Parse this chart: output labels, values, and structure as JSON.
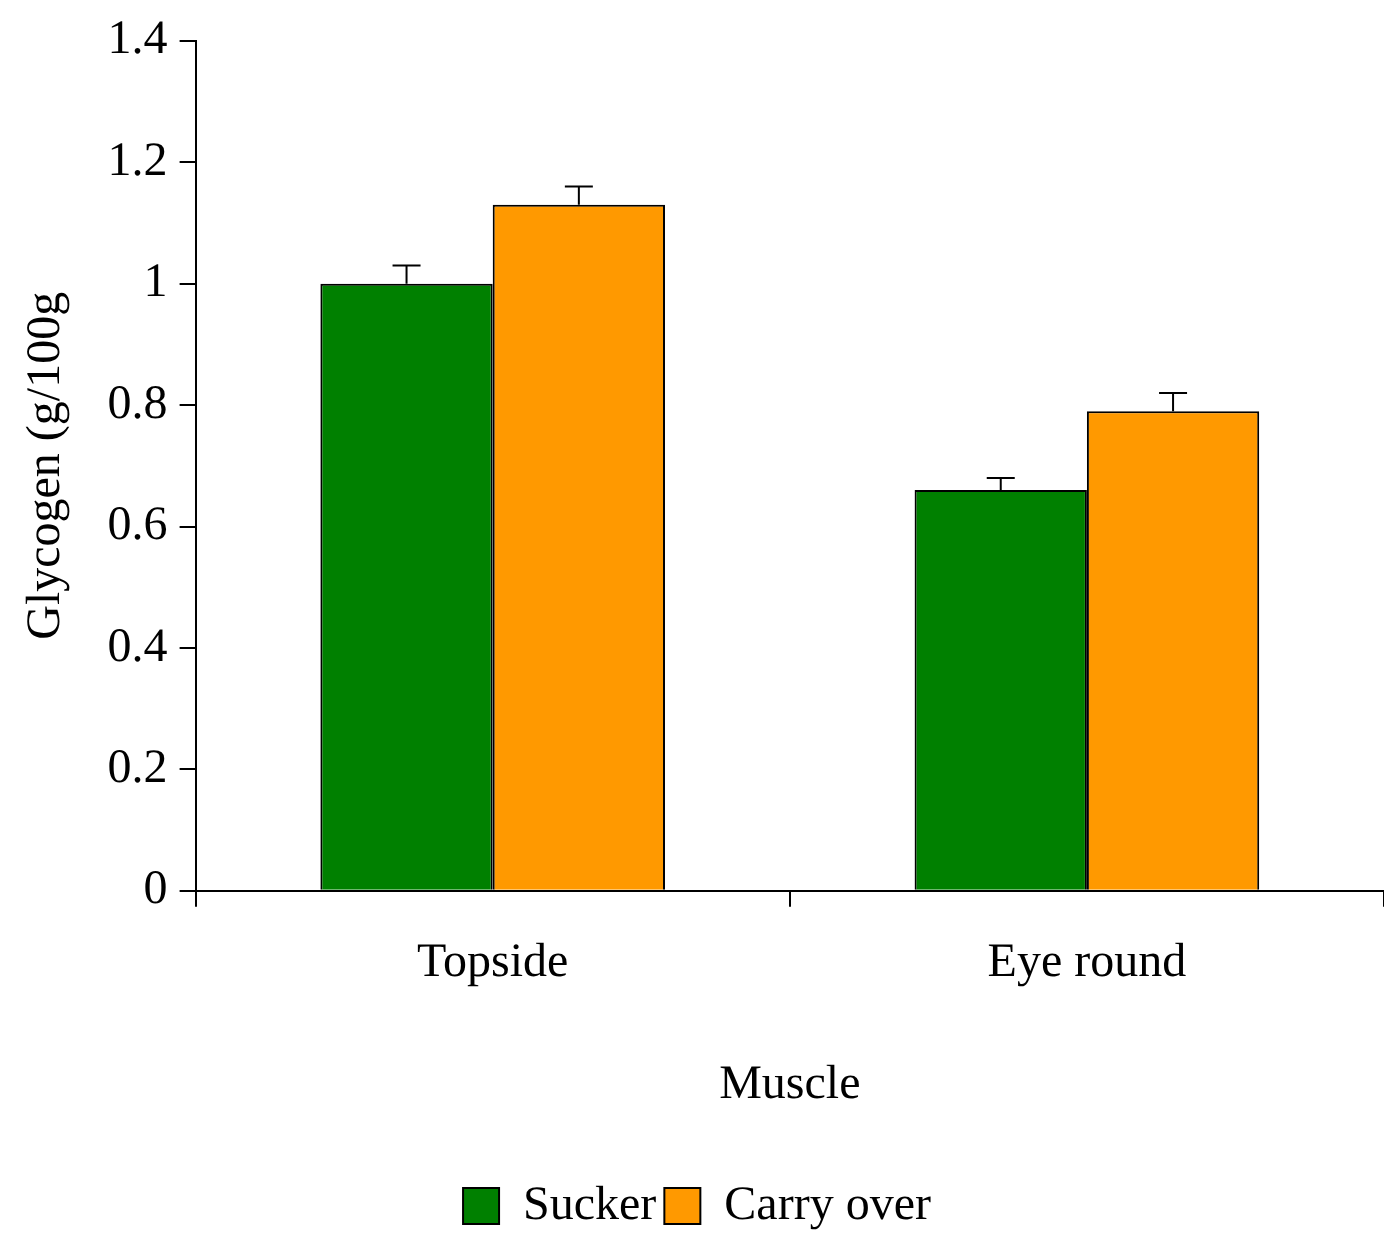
{
  "chart_data": {
    "type": "bar",
    "xlabel": "Muscle",
    "ylabel": "Glycogen (g/100g",
    "categories": [
      "Topside",
      "Eye round"
    ],
    "series": [
      {
        "name": "Sucker",
        "color": "#008000",
        "values": [
          1.0,
          0.66
        ],
        "errors": [
          [
            1.0,
            1.03
          ],
          [
            0.66,
            0.68
          ]
        ]
      },
      {
        "name": "Carry over",
        "color": "#ff9900",
        "values": [
          1.13,
          0.79
        ],
        "errors": [
          [
            1.13,
            1.16
          ],
          [
            0.79,
            0.82
          ]
        ]
      }
    ],
    "ylim": [
      0,
      1.4
    ],
    "yticks": [
      0,
      0.2,
      0.4,
      0.6,
      0.8,
      1,
      1.2,
      1.4
    ],
    "grid": false,
    "legend": "bottom"
  }
}
